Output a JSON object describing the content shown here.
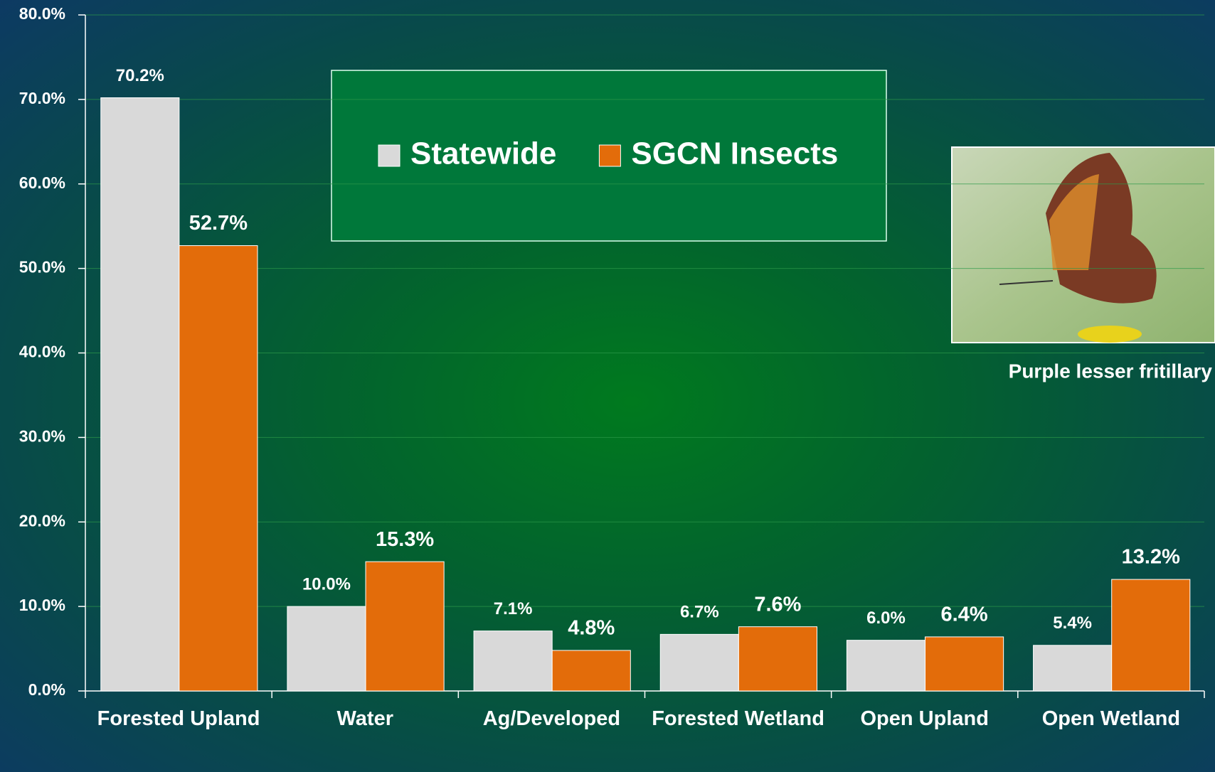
{
  "chart_data": {
    "type": "bar",
    "categories": [
      "Forested Upland",
      "Water",
      "Ag/Developed",
      "Forested Wetland",
      "Open Upland",
      "Open Wetland"
    ],
    "series": [
      {
        "name": "Statewide",
        "color": "#d9d9d9",
        "values": [
          70.2,
          10.0,
          7.1,
          6.7,
          6.0,
          5.4
        ],
        "value_labels": [
          "70.2%",
          "10.0%",
          "7.1%",
          "6.7%",
          "6.0%",
          "5.4%"
        ]
      },
      {
        "name": "SGCN Insects",
        "color": "#e36c0a",
        "values": [
          52.7,
          15.3,
          4.8,
          7.6,
          6.4,
          13.2
        ],
        "value_labels": [
          "52.7%",
          "15.3%",
          "4.8%",
          "7.6%",
          "6.4%",
          "13.2%"
        ]
      }
    ],
    "ylim": [
      0,
      80
    ],
    "yticks": [
      {
        "value": 0,
        "label": "0.0%"
      },
      {
        "value": 10,
        "label": "10.0%"
      },
      {
        "value": 20,
        "label": "20.0%"
      },
      {
        "value": 30,
        "label": "30.0%"
      },
      {
        "value": 40,
        "label": "40.0%"
      },
      {
        "value": 50,
        "label": "50.0%"
      },
      {
        "value": 60,
        "label": "60.0%"
      },
      {
        "value": 70,
        "label": "70.0%"
      },
      {
        "value": 80,
        "label": "80.0%"
      }
    ],
    "grid": true,
    "image_caption": "Purple lesser fritillary"
  }
}
